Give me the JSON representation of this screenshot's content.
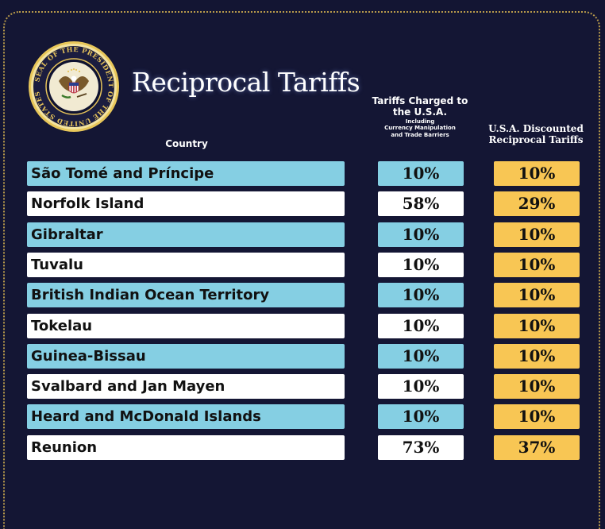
{
  "header": {
    "title": "Reciprocal Tariffs",
    "seal_text": "SEAL OF THE PRESIDENT OF THE UNITED STATES",
    "col_country": "Country",
    "col_charged_main": "Tariffs Charged to the U.S.A.",
    "col_charged_sub_1": "Including",
    "col_charged_sub_2": "Currency Manipulation",
    "col_charged_sub_3": "and Trade Barriers",
    "col_discount": "U.S.A. Discounted Reciprocal Tariffs"
  },
  "colors": {
    "background": "#131533",
    "row_blue": "#85cfe3",
    "row_white": "#ffffff",
    "discount_gold": "#f8c654"
  },
  "chart_data": {
    "type": "table",
    "title": "Reciprocal Tariffs",
    "columns": [
      "Country",
      "Tariffs Charged to the U.S.A. Including Currency Manipulation and Trade Barriers",
      "U.S.A. Discounted Reciprocal Tariffs"
    ],
    "rows": [
      {
        "country": "São Tomé and Príncipe",
        "charged": "10%",
        "discounted": "10%"
      },
      {
        "country": "Norfolk Island",
        "charged": "58%",
        "discounted": "29%"
      },
      {
        "country": "Gibraltar",
        "charged": "10%",
        "discounted": "10%"
      },
      {
        "country": "Tuvalu",
        "charged": "10%",
        "discounted": "10%"
      },
      {
        "country": "British Indian Ocean Territory",
        "charged": "10%",
        "discounted": "10%"
      },
      {
        "country": "Tokelau",
        "charged": "10%",
        "discounted": "10%"
      },
      {
        "country": "Guinea-Bissau",
        "charged": "10%",
        "discounted": "10%"
      },
      {
        "country": "Svalbard and Jan Mayen",
        "charged": "10%",
        "discounted": "10%"
      },
      {
        "country": "Heard and McDonald Islands",
        "charged": "10%",
        "discounted": "10%"
      },
      {
        "country": "Reunion",
        "charged": "73%",
        "discounted": "37%"
      }
    ]
  }
}
